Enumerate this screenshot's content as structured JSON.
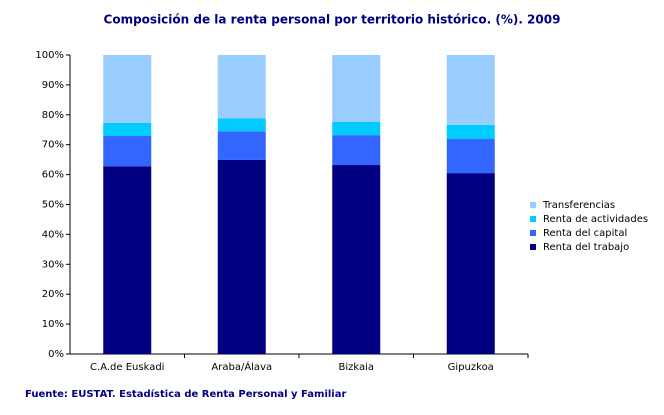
{
  "chart_data": {
    "type": "stacked_bar",
    "title": "Composición de la renta personal por territorio histórico. (%). 2009",
    "source": "Fuente: EUSTAT. Estadística de Renta Personal y Familiar",
    "categories": [
      "C.A.de Euskadi",
      "Araba/Álava",
      "Bizkaia",
      "Gipuzkoa"
    ],
    "series": [
      {
        "name": "Renta del trabajo",
        "color": "#000080",
        "values": [
          62.8,
          64.9,
          63.2,
          60.5
        ]
      },
      {
        "name": "Renta del capital",
        "color": "#3366ff",
        "values": [
          10.1,
          9.6,
          10.0,
          11.4
        ]
      },
      {
        "name": "Renta de actividades",
        "color": "#00ccff",
        "values": [
          4.4,
          4.3,
          4.4,
          4.7
        ]
      },
      {
        "name": "Transferencias",
        "color": "#99ccff",
        "values": [
          22.7,
          21.2,
          22.4,
          23.4
        ]
      }
    ],
    "ylim": [
      0,
      100
    ],
    "yticks": [
      {
        "value": 0,
        "label": "0%"
      },
      {
        "value": 10,
        "label": "10%"
      },
      {
        "value": 20,
        "label": "20%"
      },
      {
        "value": 30,
        "label": "30%"
      },
      {
        "value": 40,
        "label": "40%"
      },
      {
        "value": 50,
        "label": "50%"
      },
      {
        "value": 60,
        "label": "60%"
      },
      {
        "value": 70,
        "label": "70%"
      },
      {
        "value": 80,
        "label": "80%"
      },
      {
        "value": 90,
        "label": "90%"
      },
      {
        "value": 100,
        "label": "100%"
      }
    ],
    "legend": "right"
  }
}
